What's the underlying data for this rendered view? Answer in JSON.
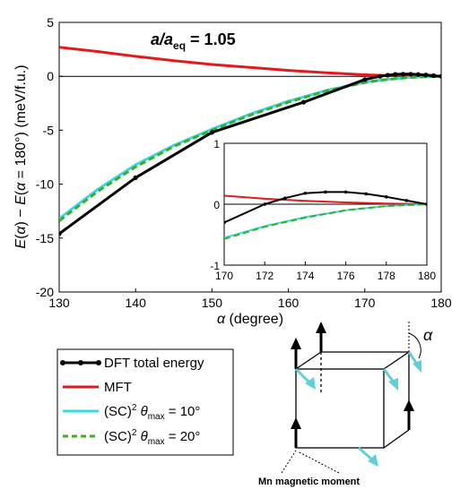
{
  "chart_data": {
    "type": "line",
    "annotation": "a/a_eq = 1.05",
    "xlabel": "α (degree)",
    "ylabel": "E(α) − E(α = 180°) (meV/f.u.)",
    "xlim": [
      130,
      180
    ],
    "ylim": [
      -20,
      5
    ],
    "x_ticks": [
      130,
      140,
      150,
      160,
      170,
      180
    ],
    "y_ticks": [
      -20,
      -15,
      -10,
      -5,
      0,
      5
    ],
    "grid": false,
    "legend_position": "bottom-left",
    "series": [
      {
        "name": "DFT total energy",
        "color": "#000000",
        "markers": true,
        "x": [
          130,
          140,
          150,
          162,
          170,
          172,
          173,
          174,
          175,
          176,
          177,
          178,
          179,
          180
        ],
        "y": [
          -14.6,
          -9.4,
          -5.2,
          -2.4,
          -0.3,
          0.0,
          0.1,
          0.18,
          0.2,
          0.2,
          0.17,
          0.12,
          0.06,
          0.0
        ]
      },
      {
        "name": "MFT",
        "color": "#e31a1c",
        "markers": false,
        "x": [
          130,
          135,
          140,
          145,
          150,
          155,
          160,
          165,
          170,
          172,
          174,
          176,
          178,
          180
        ],
        "y": [
          2.7,
          2.3,
          1.85,
          1.45,
          1.1,
          0.82,
          0.55,
          0.33,
          0.14,
          0.09,
          0.055,
          0.03,
          0.01,
          0.0
        ]
      },
      {
        "name": "(SC)² θmax = 10°",
        "color": "#33dde6",
        "markers": false,
        "x": [
          130,
          135,
          140,
          145,
          150,
          155,
          160,
          165,
          170,
          172,
          174,
          176,
          178,
          180
        ],
        "y": [
          -13.2,
          -10.5,
          -8.2,
          -6.4,
          -4.9,
          -3.5,
          -2.3,
          -1.3,
          -0.55,
          -0.36,
          -0.21,
          -0.1,
          -0.03,
          0.0
        ]
      },
      {
        "name": "(SC)² θmax = 20°",
        "color": "#44aa22",
        "markers": false,
        "dashed": true,
        "x": [
          130,
          135,
          140,
          145,
          150,
          155,
          160,
          165,
          170,
          172,
          174,
          176,
          178,
          180
        ],
        "y": [
          -13.4,
          -10.7,
          -8.4,
          -6.5,
          -5.0,
          -3.6,
          -2.4,
          -1.35,
          -0.57,
          -0.37,
          -0.22,
          -0.1,
          -0.03,
          0.0
        ]
      }
    ],
    "inset": {
      "xlim": [
        170,
        180
      ],
      "ylim": [
        -1,
        1
      ],
      "x_ticks": [
        170,
        172,
        174,
        176,
        178,
        180
      ],
      "y_ticks": [
        -1,
        0,
        1
      ]
    }
  },
  "legend": {
    "items": [
      {
        "label": "DFT total energy",
        "color": "#000000",
        "style": "marker"
      },
      {
        "label": "MFT",
        "color": "#e31a1c",
        "style": "solid"
      },
      {
        "label": "(SC)² θmax = 10°",
        "color": "#33dde6",
        "style": "solid"
      },
      {
        "label": "(SC)² θmax = 20°",
        "color": "#44aa22",
        "style": "dashed"
      }
    ]
  },
  "cube": {
    "angle_label": "α",
    "caption": "Mn magnetic moment",
    "arrow_color_up": "#000000",
    "arrow_color_tilted": "#5fd0d8"
  }
}
